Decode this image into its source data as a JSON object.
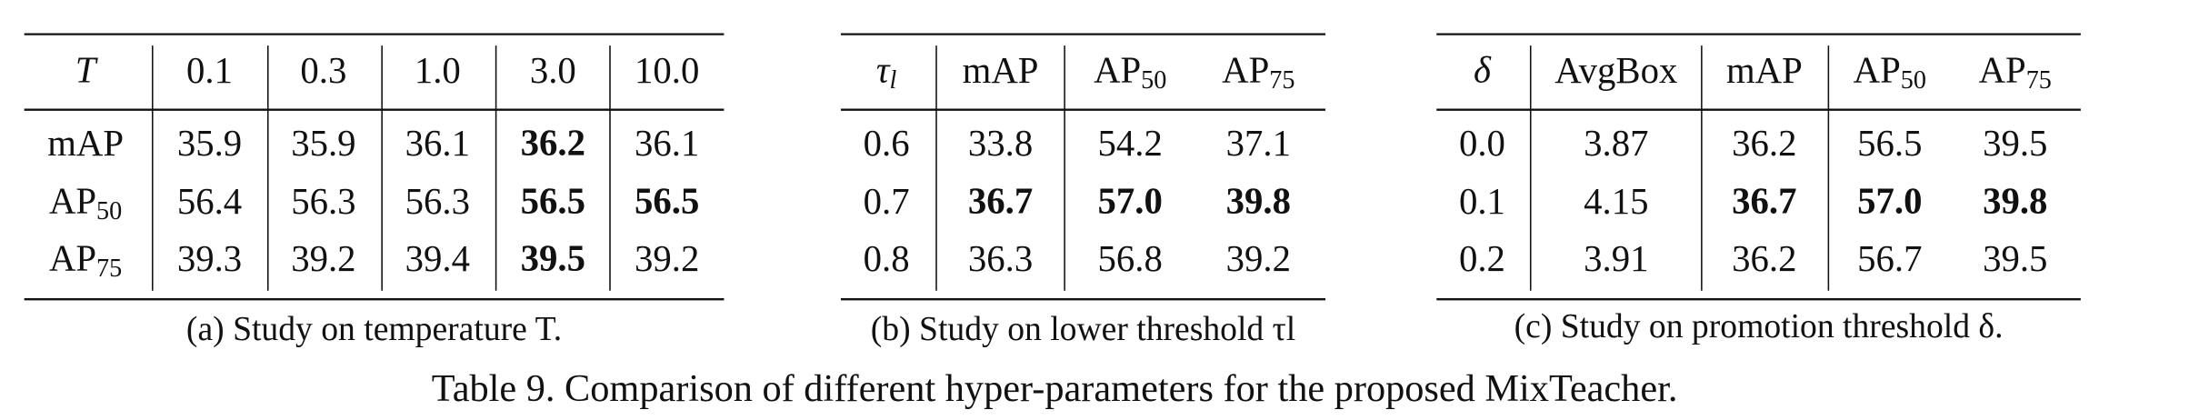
{
  "tables": [
    {
      "header": [
        {
          "text": "T",
          "italic": true
        },
        "0.1",
        "0.3",
        "1.0",
        "3.0",
        "10.0"
      ],
      "rows": [
        [
          "mAP",
          "35.9",
          "35.9",
          "36.1",
          {
            "text": "36.2",
            "bold": true
          },
          "36.1"
        ],
        [
          {
            "text": "AP",
            "sub": "50"
          },
          "56.4",
          "56.3",
          "56.3",
          {
            "text": "56.5",
            "bold": true
          },
          {
            "text": "56.5",
            "bold": true
          }
        ],
        [
          {
            "text": "AP",
            "sub": "75"
          },
          "39.3",
          "39.2",
          "39.4",
          {
            "text": "39.5",
            "bold": true
          },
          "39.2"
        ]
      ],
      "caption": "(a) Study on temperature T."
    },
    {
      "header": [
        {
          "text": "τ",
          "sub": "l",
          "italic": true
        },
        "mAP",
        {
          "text": "AP",
          "sub": "50"
        },
        {
          "text": "AP",
          "sub": "75"
        }
      ],
      "rows": [
        [
          "0.6",
          "33.8",
          "54.2",
          "37.1"
        ],
        [
          "0.7",
          {
            "text": "36.7",
            "bold": true
          },
          {
            "text": "57.0",
            "bold": true
          },
          {
            "text": "39.8",
            "bold": true
          }
        ],
        [
          "0.8",
          "36.3",
          "56.8",
          "39.2"
        ]
      ],
      "caption": "(b) Study on lower threshold τl"
    },
    {
      "header": [
        {
          "text": "δ",
          "italic": true
        },
        "AvgBox",
        "mAP",
        {
          "text": "AP",
          "sub": "50"
        },
        {
          "text": "AP",
          "sub": "75"
        }
      ],
      "rows": [
        [
          "0.0",
          "3.87",
          "36.2",
          "56.5",
          "39.5"
        ],
        [
          "0.1",
          "4.15",
          {
            "text": "36.7",
            "bold": true
          },
          {
            "text": "57.0",
            "bold": true
          },
          {
            "text": "39.8",
            "bold": true
          }
        ],
        [
          "0.2",
          "3.91",
          "36.2",
          "56.7",
          "39.5"
        ]
      ],
      "caption": "(c) Study on promotion threshold δ."
    }
  ],
  "caption": "Table 9. Comparison of different hyper-parameters for the proposed MixTeacher."
}
